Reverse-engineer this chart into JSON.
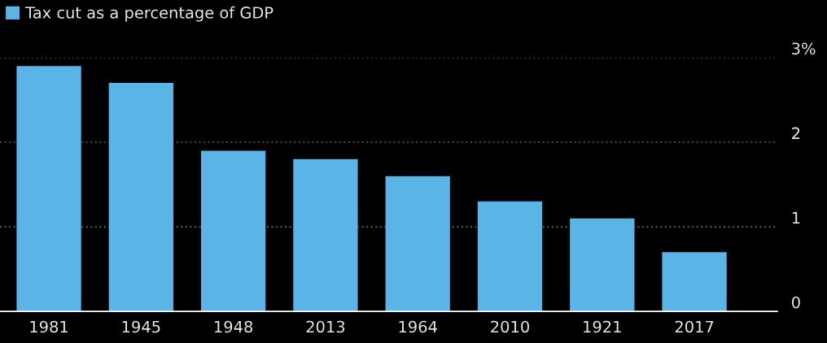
{
  "chart_data": {
    "type": "bar",
    "categories": [
      "1981",
      "1945",
      "1948",
      "2013",
      "1964",
      "2010",
      "1921",
      "2017"
    ],
    "series": [
      {
        "name": "Tax cut as a percentage of GDP",
        "color": "#5ab4e5",
        "values": [
          2.9,
          2.7,
          1.9,
          1.8,
          1.6,
          1.3,
          1.1,
          0.7
        ]
      }
    ],
    "ylim": [
      0,
      3
    ],
    "yticks": [
      0,
      1,
      2,
      {
        "value": 3,
        "label": "3%"
      }
    ],
    "grid": "y",
    "legend": "top left"
  }
}
